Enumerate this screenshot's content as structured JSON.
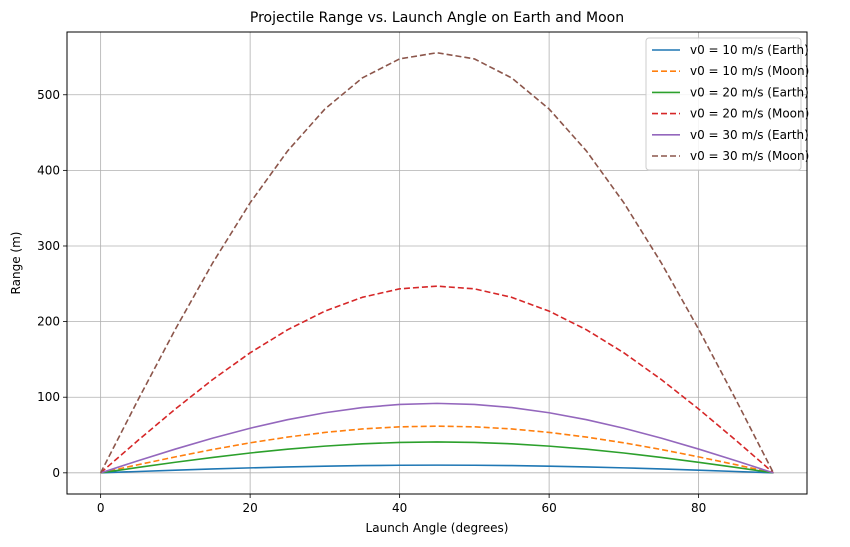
{
  "chart_data": {
    "type": "line",
    "title": "Projectile Range vs. Launch Angle on Earth and Moon",
    "xlabel": "Launch Angle (degrees)",
    "ylabel": "Range (m)",
    "xlim": [
      -4.5,
      94.5
    ],
    "ylim": [
      -28,
      583
    ],
    "xticks": [
      0,
      20,
      40,
      60,
      80
    ],
    "yticks": [
      0,
      100,
      200,
      300,
      400,
      500
    ],
    "grid": true,
    "legend_position": "top-right",
    "x": [
      0,
      5,
      10,
      15,
      20,
      25,
      30,
      35,
      40,
      45,
      50,
      55,
      60,
      65,
      70,
      75,
      80,
      85,
      90
    ],
    "series": [
      {
        "name": "v0 = 10 m/s (Earth)",
        "color": "#1f77b4",
        "style": "solid",
        "values": [
          0,
          1.77,
          3.49,
          5.1,
          6.55,
          7.81,
          8.83,
          9.58,
          10.04,
          10.19,
          10.04,
          9.58,
          8.83,
          7.81,
          6.55,
          5.1,
          3.49,
          1.77,
          0
        ]
      },
      {
        "name": "v0 = 10 m/s (Moon)",
        "color": "#ff7f0e",
        "style": "dashed",
        "values": [
          0,
          10.72,
          21.11,
          30.86,
          39.67,
          47.27,
          53.46,
          58.03,
          60.83,
          61.73,
          60.83,
          58.03,
          53.46,
          47.27,
          39.67,
          30.86,
          21.11,
          10.72,
          0
        ]
      },
      {
        "name": "v0 = 20 m/s (Earth)",
        "color": "#2ca02c",
        "style": "solid",
        "values": [
          0,
          7.1,
          13.96,
          20.39,
          26.22,
          31.25,
          35.32,
          38.35,
          40.2,
          40.82,
          40.2,
          38.35,
          35.32,
          31.25,
          26.22,
          20.39,
          13.96,
          7.1,
          0
        ]
      },
      {
        "name": "v0 = 20 m/s (Moon)",
        "color": "#d62728",
        "style": "dashed",
        "values": [
          0,
          42.88,
          84.45,
          123.46,
          158.71,
          189.15,
          213.83,
          232.1,
          243.32,
          246.91,
          243.32,
          232.1,
          213.83,
          189.15,
          158.71,
          123.46,
          84.45,
          42.88,
          0
        ]
      },
      {
        "name": "v0 = 30 m/s (Earth)",
        "color": "#9467bd",
        "style": "solid",
        "values": [
          0,
          15.97,
          31.43,
          45.89,
          58.98,
          70.29,
          79.45,
          86.29,
          90.48,
          91.84,
          90.48,
          86.29,
          79.45,
          70.29,
          58.98,
          45.89,
          31.43,
          15.97,
          0
        ]
      },
      {
        "name": "v0 = 30 m/s (Moon)",
        "color": "#8c564b",
        "style": "dashed",
        "values": [
          0,
          96.47,
          189.99,
          277.78,
          357.08,
          425.56,
          481.12,
          522.21,
          547.46,
          555.56,
          547.46,
          522.21,
          481.12,
          425.56,
          357.08,
          277.78,
          189.99,
          96.47,
          0
        ]
      }
    ]
  }
}
